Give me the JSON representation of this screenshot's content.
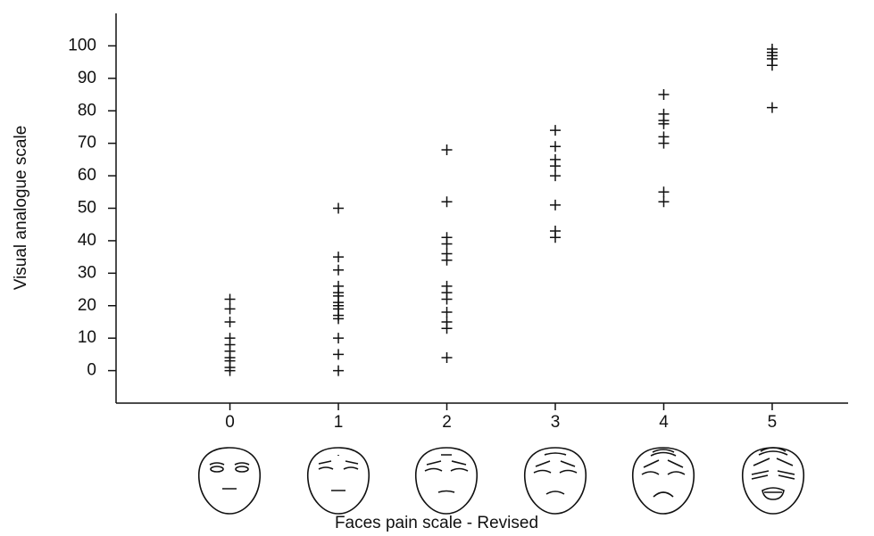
{
  "chart_data": {
    "type": "scatter",
    "x_label": "Faces pain scale - Revised",
    "y_label": "Visual analogue scale",
    "x": [
      0,
      0,
      0,
      0,
      0,
      0,
      0,
      0,
      0,
      0,
      1,
      1,
      1,
      1,
      1,
      1,
      1,
      1,
      1,
      1,
      1,
      1,
      1,
      1,
      2,
      2,
      2,
      2,
      2,
      2,
      2,
      2,
      2,
      2,
      2,
      2,
      2,
      3,
      3,
      3,
      3,
      3,
      3,
      3,
      3,
      4,
      4,
      4,
      4,
      4,
      4,
      4,
      4,
      5,
      5,
      5,
      5,
      5,
      5
    ],
    "values": [
      22,
      19,
      15,
      10,
      8,
      6,
      4,
      3,
      1,
      0,
      50,
      35,
      31,
      26,
      24,
      23,
      21,
      20,
      19,
      17,
      16,
      10,
      5,
      0,
      68,
      52,
      41,
      39,
      36,
      34,
      26,
      24,
      22,
      18,
      15,
      13,
      4,
      74,
      69,
      65,
      63,
      60,
      51,
      43,
      41,
      85,
      79,
      77,
      76,
      72,
      70,
      55,
      52,
      99,
      98,
      97,
      96,
      94,
      81
    ],
    "color": "#111111",
    "xlim": [
      -1.05,
      5.7
    ],
    "xticks": [
      0,
      1,
      2,
      3,
      4,
      5
    ],
    "ylim": [
      -10,
      110
    ],
    "yticks": [
      0,
      10,
      20,
      30,
      40,
      50,
      60,
      70,
      80,
      90,
      100
    ]
  }
}
